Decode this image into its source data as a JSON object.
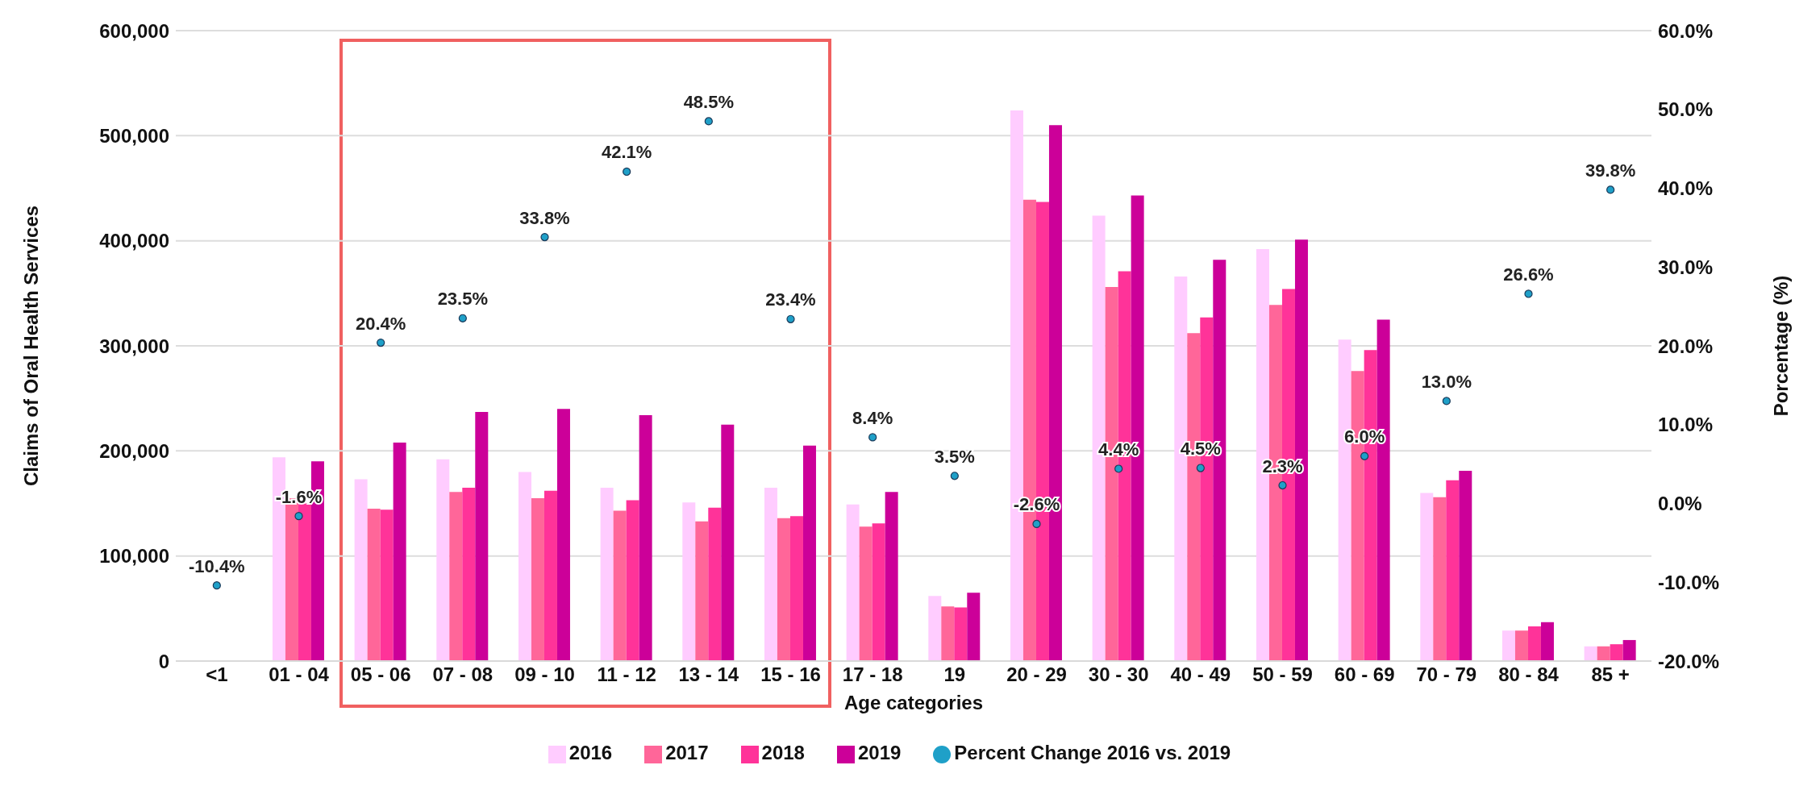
{
  "chart_data": {
    "type": "bar",
    "xlabel": "Age categories",
    "ylabel": "Claims of Oral Health Services",
    "y2label": "Porcentage (%)",
    "categories": [
      "<1",
      "01 - 04",
      "05 - 06",
      "07 - 08",
      "09 - 10",
      "11 - 12",
      "13 - 14",
      "15 - 16",
      "17 - 18",
      "19",
      "20 - 29",
      "30 - 30",
      "40 - 49",
      "50 - 59",
      "60 - 69",
      "70 - 79",
      "80 - 84",
      "85 +"
    ],
    "series": [
      {
        "name": "2016",
        "color": "#ffccff",
        "values": [
          null,
          194000,
          173000,
          192000,
          180000,
          165000,
          151000,
          165000,
          149000,
          62000,
          524000,
          424000,
          366000,
          392000,
          306000,
          160000,
          29000,
          14000
        ]
      },
      {
        "name": "2017",
        "color": "#ff6699",
        "values": [
          null,
          155000,
          145000,
          161000,
          155000,
          143000,
          133000,
          136000,
          128000,
          52000,
          439000,
          356000,
          312000,
          339000,
          276000,
          156000,
          29000,
          14000
        ]
      },
      {
        "name": "2018",
        "color": "#ff3399",
        "values": [
          null,
          150000,
          144000,
          165000,
          162000,
          153000,
          146000,
          138000,
          131000,
          51000,
          437000,
          371000,
          327000,
          354000,
          296000,
          172000,
          33000,
          16000
        ]
      },
      {
        "name": "2019",
        "color": "#cc0099",
        "values": [
          null,
          190000,
          208000,
          237000,
          240000,
          234000,
          225000,
          205000,
          161000,
          65000,
          510000,
          443000,
          382000,
          401000,
          325000,
          181000,
          37000,
          20000
        ]
      },
      {
        "name": "Percent Change 2016 vs. 2019",
        "type": "scatter",
        "axis": "y2",
        "color": "#1fa0c8",
        "marker": "circle",
        "values": [
          -10.4,
          -1.6,
          20.4,
          23.5,
          33.8,
          42.1,
          48.5,
          23.4,
          8.4,
          3.5,
          -2.6,
          4.4,
          4.5,
          2.3,
          6.0,
          13.0,
          26.6,
          39.8
        ],
        "value_labels": [
          "-10.4%",
          "-1.6%",
          "20.4%",
          "23.5%",
          "33.8%",
          "42.1%",
          "48.5%",
          "23.4%",
          "8.4%",
          "3.5%",
          "-2.6%",
          "4.4%",
          "4.5%",
          "2.3%",
          "6.0%",
          "13.0%",
          "26.6%",
          "39.8%"
        ]
      }
    ],
    "ylim": [
      0,
      600000
    ],
    "yticks": [
      {
        "value": 0,
        "label": "0"
      },
      {
        "value": 100000,
        "label": "100,000"
      },
      {
        "value": 200000,
        "label": "200,000"
      },
      {
        "value": 300000,
        "label": "300,000"
      },
      {
        "value": 400000,
        "label": "400,000"
      },
      {
        "value": 500000,
        "label": "500,000"
      },
      {
        "value": 600000,
        "label": "600,000"
      }
    ],
    "y2lim": [
      -20,
      60
    ],
    "y2ticks": [
      {
        "value": -20,
        "label": "-20.0%"
      },
      {
        "value": -10,
        "label": "-10.0%"
      },
      {
        "value": 0,
        "label": "0.0%"
      },
      {
        "value": 10,
        "label": "10.0%"
      },
      {
        "value": 20,
        "label": "20.0%"
      },
      {
        "value": 30,
        "label": "30.0%"
      },
      {
        "value": 40,
        "label": "40.0%"
      },
      {
        "value": 50,
        "label": "50.0%"
      },
      {
        "value": 60,
        "label": "60.0%"
      }
    ],
    "grid": "y",
    "legend": "bottom"
  }
}
